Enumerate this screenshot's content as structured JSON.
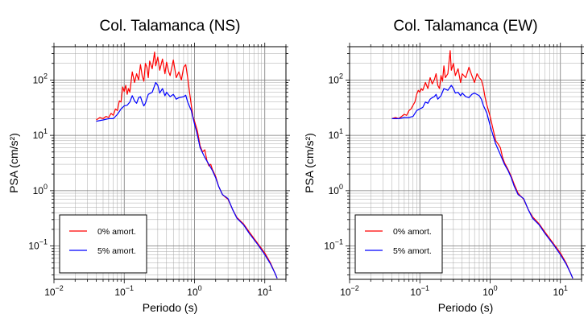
{
  "chart_data": [
    {
      "type": "line",
      "title": "Col. Talamanca (NS)",
      "xlabel": "Periodo (s)",
      "ylabel": "PSA (cm/s²)",
      "xscale": "log",
      "yscale": "log",
      "xlim": [
        0.01,
        20
      ],
      "ylim": [
        0.025,
        400
      ],
      "grid": true,
      "legend_position": "bottom-left",
      "xticks": [
        {
          "base": "10",
          "exp": "−2",
          "value": 0.01
        },
        {
          "base": "10",
          "exp": "−1",
          "value": 0.1
        },
        {
          "base": "10",
          "exp": "0",
          "value": 1
        },
        {
          "base": "10",
          "exp": "1",
          "value": 10
        }
      ],
      "yticks": [
        {
          "base": "10",
          "exp": "−1",
          "value": 0.1
        },
        {
          "base": "10",
          "exp": "0",
          "value": 1
        },
        {
          "base": "10",
          "exp": "1",
          "value": 10
        },
        {
          "base": "10",
          "exp": "2",
          "value": 100
        }
      ],
      "series": [
        {
          "name": "0% amort.",
          "color": "#ff0000",
          "points": [
            [
              0.04,
              19
            ],
            [
              0.045,
              21
            ],
            [
              0.05,
              20
            ],
            [
              0.055,
              22
            ],
            [
              0.06,
              21
            ],
            [
              0.065,
              25
            ],
            [
              0.07,
              23
            ],
            [
              0.075,
              30
            ],
            [
              0.08,
              28
            ],
            [
              0.085,
              42
            ],
            [
              0.09,
              40
            ],
            [
              0.095,
              75
            ],
            [
              0.1,
              62
            ],
            [
              0.105,
              80
            ],
            [
              0.11,
              55
            ],
            [
              0.115,
              70
            ],
            [
              0.12,
              60
            ],
            [
              0.13,
              140
            ],
            [
              0.14,
              90
            ],
            [
              0.15,
              130
            ],
            [
              0.16,
              100
            ],
            [
              0.17,
              190
            ],
            [
              0.18,
              120
            ],
            [
              0.19,
              95
            ],
            [
              0.2,
              200
            ],
            [
              0.21,
              170
            ],
            [
              0.22,
              110
            ],
            [
              0.23,
              220
            ],
            [
              0.25,
              160
            ],
            [
              0.27,
              320
            ],
            [
              0.28,
              180
            ],
            [
              0.3,
              260
            ],
            [
              0.32,
              150
            ],
            [
              0.35,
              240
            ],
            [
              0.38,
              130
            ],
            [
              0.4,
              210
            ],
            [
              0.43,
              140
            ],
            [
              0.45,
              120
            ],
            [
              0.5,
              230
            ],
            [
              0.55,
              110
            ],
            [
              0.6,
              140
            ],
            [
              0.65,
              100
            ],
            [
              0.7,
              170
            ],
            [
              0.75,
              190
            ],
            [
              0.8,
              110
            ],
            [
              0.85,
              60
            ],
            [
              0.9,
              35
            ],
            [
              0.95,
              22
            ],
            [
              1.0,
              18
            ],
            [
              1.1,
              12
            ],
            [
              1.2,
              6.5
            ],
            [
              1.3,
              5
            ],
            [
              1.4,
              5.5
            ],
            [
              1.5,
              3.5
            ],
            [
              1.6,
              2.8
            ],
            [
              1.7,
              3
            ],
            [
              1.8,
              2.4
            ],
            [
              2.0,
              1.8
            ],
            [
              2.2,
              1.2
            ],
            [
              2.5,
              0.85
            ],
            [
              2.8,
              0.75
            ],
            [
              3.0,
              0.7
            ],
            [
              3.5,
              0.45
            ],
            [
              4.0,
              0.33
            ],
            [
              5.0,
              0.25
            ],
            [
              6.0,
              0.18
            ],
            [
              8.0,
              0.11
            ],
            [
              10.0,
              0.075
            ],
            [
              12.0,
              0.05
            ],
            [
              14.0,
              0.032
            ],
            [
              15.0,
              0.026
            ]
          ]
        },
        {
          "name": "5% amort.",
          "color": "#0000ff",
          "points": [
            [
              0.04,
              18
            ],
            [
              0.05,
              19
            ],
            [
              0.06,
              20
            ],
            [
              0.07,
              20
            ],
            [
              0.08,
              24
            ],
            [
              0.09,
              30
            ],
            [
              0.1,
              34
            ],
            [
              0.11,
              35
            ],
            [
              0.12,
              40
            ],
            [
              0.13,
              52
            ],
            [
              0.14,
              42
            ],
            [
              0.15,
              38
            ],
            [
              0.16,
              48
            ],
            [
              0.17,
              50
            ],
            [
              0.18,
              40
            ],
            [
              0.19,
              34
            ],
            [
              0.2,
              38
            ],
            [
              0.22,
              55
            ],
            [
              0.25,
              60
            ],
            [
              0.28,
              90
            ],
            [
              0.3,
              80
            ],
            [
              0.32,
              58
            ],
            [
              0.35,
              70
            ],
            [
              0.38,
              52
            ],
            [
              0.4,
              60
            ],
            [
              0.45,
              50
            ],
            [
              0.5,
              55
            ],
            [
              0.55,
              45
            ],
            [
              0.6,
              48
            ],
            [
              0.7,
              50
            ],
            [
              0.75,
              53
            ],
            [
              0.8,
              40
            ],
            [
              0.9,
              28
            ],
            [
              1.0,
              16
            ],
            [
              1.1,
              10
            ],
            [
              1.2,
              6
            ],
            [
              1.4,
              4
            ],
            [
              1.6,
              3
            ],
            [
              1.8,
              2.3
            ],
            [
              2.0,
              1.7
            ],
            [
              2.2,
              1.2
            ],
            [
              2.5,
              0.85
            ],
            [
              3.0,
              0.72
            ],
            [
              3.5,
              0.45
            ],
            [
              4.0,
              0.32
            ],
            [
              5.0,
              0.24
            ],
            [
              6.0,
              0.17
            ],
            [
              8.0,
              0.105
            ],
            [
              10.0,
              0.07
            ],
            [
              12.0,
              0.048
            ],
            [
              14.0,
              0.032
            ],
            [
              15.0,
              0.026
            ]
          ]
        }
      ]
    },
    {
      "type": "line",
      "title": "Col. Talamanca (EW)",
      "xlabel": "Periodo (s)",
      "ylabel": "PSA (cm/s²)",
      "xscale": "log",
      "yscale": "log",
      "xlim": [
        0.01,
        20
      ],
      "ylim": [
        0.025,
        400
      ],
      "grid": true,
      "legend_position": "bottom-left",
      "xticks": [
        {
          "base": "10",
          "exp": "−2",
          "value": 0.01
        },
        {
          "base": "10",
          "exp": "−1",
          "value": 0.1
        },
        {
          "base": "10",
          "exp": "0",
          "value": 1
        },
        {
          "base": "10",
          "exp": "1",
          "value": 10
        }
      ],
      "yticks": [
        {
          "base": "10",
          "exp": "−1",
          "value": 0.1
        },
        {
          "base": "10",
          "exp": "0",
          "value": 1
        },
        {
          "base": "10",
          "exp": "1",
          "value": 10
        },
        {
          "base": "10",
          "exp": "2",
          "value": 100
        }
      ],
      "series": [
        {
          "name": "0% amort.",
          "color": "#ff0000",
          "points": [
            [
              0.04,
              20
            ],
            [
              0.045,
              21
            ],
            [
              0.05,
              20
            ],
            [
              0.055,
              22
            ],
            [
              0.06,
              24
            ],
            [
              0.065,
              23
            ],
            [
              0.07,
              28
            ],
            [
              0.075,
              30
            ],
            [
              0.08,
              35
            ],
            [
              0.085,
              40
            ],
            [
              0.09,
              55
            ],
            [
              0.095,
              65
            ],
            [
              0.1,
              60
            ],
            [
              0.105,
              70
            ],
            [
              0.11,
              65
            ],
            [
              0.12,
              90
            ],
            [
              0.13,
              70
            ],
            [
              0.14,
              110
            ],
            [
              0.15,
              85
            ],
            [
              0.16,
              100
            ],
            [
              0.17,
              130
            ],
            [
              0.18,
              80
            ],
            [
              0.19,
              70
            ],
            [
              0.2,
              120
            ],
            [
              0.21,
              95
            ],
            [
              0.22,
              180
            ],
            [
              0.23,
              110
            ],
            [
              0.25,
              130
            ],
            [
              0.27,
              340
            ],
            [
              0.28,
              150
            ],
            [
              0.3,
              200
            ],
            [
              0.32,
              120
            ],
            [
              0.35,
              160
            ],
            [
              0.38,
              90
            ],
            [
              0.4,
              130
            ],
            [
              0.45,
              110
            ],
            [
              0.5,
              170
            ],
            [
              0.55,
              120
            ],
            [
              0.6,
              90
            ],
            [
              0.65,
              130
            ],
            [
              0.7,
              110
            ],
            [
              0.75,
              100
            ],
            [
              0.8,
              75
            ],
            [
              0.85,
              48
            ],
            [
              0.9,
              35
            ],
            [
              1.0,
              22
            ],
            [
              1.1,
              13
            ],
            [
              1.2,
              8
            ],
            [
              1.3,
              7
            ],
            [
              1.4,
              6
            ],
            [
              1.5,
              4
            ],
            [
              1.6,
              3.2
            ],
            [
              1.8,
              2.4
            ],
            [
              2.0,
              1.8
            ],
            [
              2.2,
              1.3
            ],
            [
              2.5,
              0.9
            ],
            [
              3.0,
              0.7
            ],
            [
              3.5,
              0.45
            ],
            [
              4.0,
              0.34
            ],
            [
              5.0,
              0.25
            ],
            [
              6.0,
              0.18
            ],
            [
              8.0,
              0.11
            ],
            [
              10.0,
              0.075
            ],
            [
              12.0,
              0.05
            ],
            [
              14.0,
              0.032
            ],
            [
              15.0,
              0.026
            ]
          ]
        },
        {
          "name": "5% amort.",
          "color": "#0000ff",
          "points": [
            [
              0.04,
              20
            ],
            [
              0.05,
              20
            ],
            [
              0.06,
              21
            ],
            [
              0.07,
              21
            ],
            [
              0.08,
              22
            ],
            [
              0.09,
              28
            ],
            [
              0.1,
              30
            ],
            [
              0.11,
              32
            ],
            [
              0.12,
              40
            ],
            [
              0.13,
              38
            ],
            [
              0.14,
              45
            ],
            [
              0.15,
              48
            ],
            [
              0.16,
              50
            ],
            [
              0.17,
              55
            ],
            [
              0.18,
              45
            ],
            [
              0.2,
              52
            ],
            [
              0.22,
              70
            ],
            [
              0.25,
              65
            ],
            [
              0.28,
              80
            ],
            [
              0.3,
              70
            ],
            [
              0.32,
              58
            ],
            [
              0.35,
              60
            ],
            [
              0.38,
              52
            ],
            [
              0.4,
              58
            ],
            [
              0.45,
              50
            ],
            [
              0.5,
              48
            ],
            [
              0.55,
              55
            ],
            [
              0.6,
              58
            ],
            [
              0.7,
              52
            ],
            [
              0.75,
              45
            ],
            [
              0.8,
              35
            ],
            [
              0.9,
              25
            ],
            [
              1.0,
              15
            ],
            [
              1.1,
              10
            ],
            [
              1.2,
              7
            ],
            [
              1.4,
              4.5
            ],
            [
              1.6,
              3
            ],
            [
              1.8,
              2.3
            ],
            [
              2.0,
              1.7
            ],
            [
              2.2,
              1.2
            ],
            [
              2.5,
              0.85
            ],
            [
              3.0,
              0.72
            ],
            [
              3.5,
              0.45
            ],
            [
              4.0,
              0.32
            ],
            [
              5.0,
              0.24
            ],
            [
              6.0,
              0.17
            ],
            [
              8.0,
              0.105
            ],
            [
              10.0,
              0.07
            ],
            [
              12.0,
              0.048
            ],
            [
              14.0,
              0.032
            ],
            [
              15.0,
              0.026
            ]
          ]
        }
      ]
    }
  ]
}
